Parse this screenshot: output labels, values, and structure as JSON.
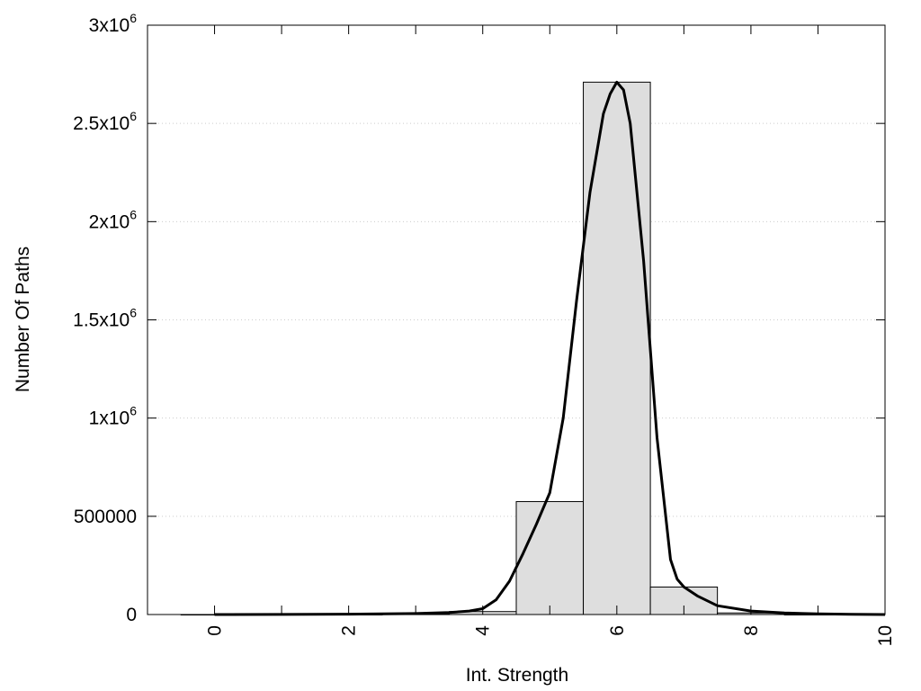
{
  "chart_data": {
    "type": "bar",
    "title": "",
    "xlabel": "Int. Strength",
    "ylabel": "Number Of Paths",
    "xlim": [
      -1,
      10
    ],
    "ylim": [
      0,
      3000000
    ],
    "grid": true,
    "legend": "none",
    "colors": {
      "bar_fill": "#dedede",
      "bar_stroke": "#000000",
      "curve": "#000000",
      "grid": "#cccccc"
    },
    "x_ticks": [
      {
        "value": 0,
        "label": "0"
      },
      {
        "value": 2,
        "label": "2"
      },
      {
        "value": 4,
        "label": "4"
      },
      {
        "value": 6,
        "label": "6"
      },
      {
        "value": 8,
        "label": "8"
      },
      {
        "value": 10,
        "label": "10"
      }
    ],
    "x_minor_ticks": [
      1,
      3,
      5,
      7,
      9
    ],
    "y_ticks": [
      {
        "value": 0,
        "base": "0",
        "exp": ""
      },
      {
        "value": 500000,
        "base": "500000",
        "exp": ""
      },
      {
        "value": 1000000,
        "base": "1x10",
        "exp": "6"
      },
      {
        "value": 1500000,
        "base": "1.5x10",
        "exp": "6"
      },
      {
        "value": 2000000,
        "base": "2x10",
        "exp": "6"
      },
      {
        "value": 2500000,
        "base": "2.5x10",
        "exp": "6"
      },
      {
        "value": 3000000,
        "base": "3x10",
        "exp": "6"
      }
    ],
    "bars": [
      {
        "x": 0,
        "value": 0
      },
      {
        "x": 1,
        "value": 0
      },
      {
        "x": 2,
        "value": 0
      },
      {
        "x": 3,
        "value": 2000
      },
      {
        "x": 4,
        "value": 15000
      },
      {
        "x": 5,
        "value": 575000
      },
      {
        "x": 6,
        "value": 2710000
      },
      {
        "x": 7,
        "value": 140000
      },
      {
        "x": 8,
        "value": 8000
      },
      {
        "x": 9,
        "value": 0
      }
    ],
    "bar_width": 1,
    "curve": {
      "x": [
        0,
        1,
        2,
        3,
        3.5,
        3.8,
        4,
        4.2,
        4.4,
        4.6,
        4.8,
        5,
        5.2,
        5.4,
        5.6,
        5.8,
        5.9,
        6,
        6.1,
        6.2,
        6.4,
        6.6,
        6.8,
        6.9,
        7,
        7.2,
        7.5,
        8,
        8.5,
        9,
        9.5,
        10
      ],
      "y": [
        0,
        500,
        2000,
        5000,
        10000,
        18000,
        30000,
        75000,
        170000,
        310000,
        460000,
        620000,
        1000000,
        1600000,
        2150000,
        2550000,
        2650000,
        2710000,
        2670000,
        2500000,
        1800000,
        900000,
        280000,
        180000,
        140000,
        95000,
        45000,
        18000,
        8000,
        3000,
        1000,
        0
      ]
    }
  }
}
